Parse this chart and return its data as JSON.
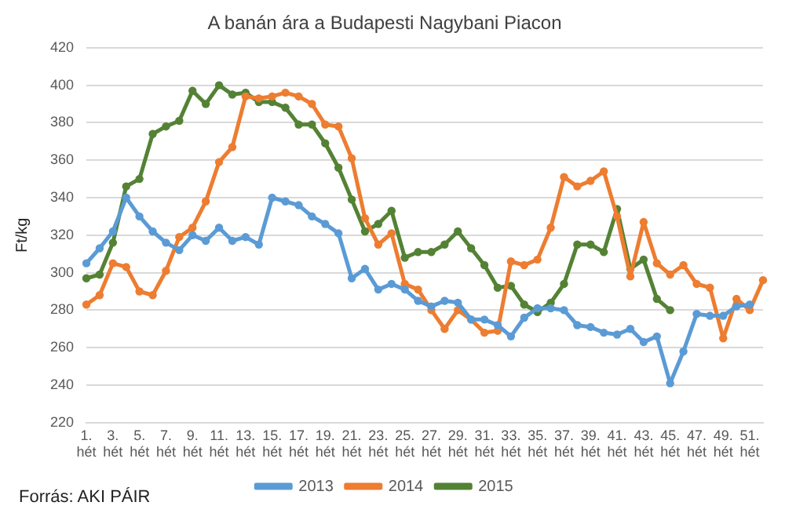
{
  "chart_data": {
    "type": "line",
    "title": "A banán ára a Budapesti Nagybani Piacon",
    "ylabel": "Ft/kg",
    "categories": [
      "1. hét",
      null,
      "3. hét",
      null,
      "5. hét",
      null,
      "7. hét",
      null,
      "9. hét",
      null,
      "11. hét",
      null,
      "13. hét",
      null,
      "15. hét",
      null,
      "17. hét",
      null,
      "19. hét",
      null,
      "21. hét",
      null,
      "23. hét",
      null,
      "25. hét",
      null,
      "27. hét",
      null,
      "29. hét",
      null,
      "31. hét",
      null,
      "33. hét",
      null,
      "35. hét",
      null,
      "37. hét",
      null,
      "39. hét",
      null,
      "41. hét",
      null,
      "43. hét",
      null,
      "45. hét",
      null,
      "47. hét",
      null,
      "49. hét",
      null,
      "51. hét",
      null
    ],
    "series": [
      {
        "name": "2013",
        "color": "#5b9bd5",
        "values": [
          305,
          313,
          322,
          340,
          330,
          322,
          316,
          312,
          320,
          317,
          324,
          317,
          319,
          315,
          340,
          338,
          336,
          330,
          326,
          321,
          297,
          302,
          291,
          294,
          291,
          285,
          282,
          285,
          284,
          275,
          275,
          272,
          266,
          276,
          281,
          281,
          280,
          272,
          271,
          268,
          267,
          270,
          263,
          266,
          241,
          258,
          278,
          277,
          277,
          282,
          283,
          null
        ]
      },
      {
        "name": "2014",
        "color": "#ed7d31",
        "values": [
          283,
          288,
          305,
          303,
          290,
          288,
          301,
          319,
          324,
          338,
          359,
          367,
          394,
          393,
          394,
          396,
          394,
          390,
          379,
          378,
          361,
          329,
          315,
          321,
          294,
          291,
          280,
          270,
          280,
          275,
          268,
          269,
          306,
          304,
          307,
          324,
          351,
          346,
          349,
          354,
          330,
          298,
          327,
          305,
          299,
          304,
          294,
          292,
          265,
          286,
          280,
          296
        ]
      },
      {
        "name": "2015",
        "color": "#548235",
        "values": [
          297,
          299,
          316,
          346,
          350,
          374,
          378,
          381,
          397,
          390,
          400,
          395,
          396,
          391,
          391,
          388,
          379,
          379,
          369,
          356,
          339,
          322,
          326,
          333,
          308,
          311,
          311,
          315,
          322,
          313,
          304,
          292,
          293,
          283,
          279,
          284,
          294,
          315,
          315,
          311,
          334,
          302,
          307,
          286,
          280,
          null,
          null,
          null,
          null,
          null,
          null,
          null
        ]
      }
    ],
    "ylim": [
      220,
      420
    ],
    "yticks": [
      220,
      240,
      260,
      280,
      300,
      320,
      340,
      360,
      380,
      400,
      420
    ],
    "grid": "y",
    "legend": "bottom",
    "marker": "circle",
    "line_style": "solid",
    "annotations": [
      "Forrás: AKI PÁIR"
    ]
  }
}
